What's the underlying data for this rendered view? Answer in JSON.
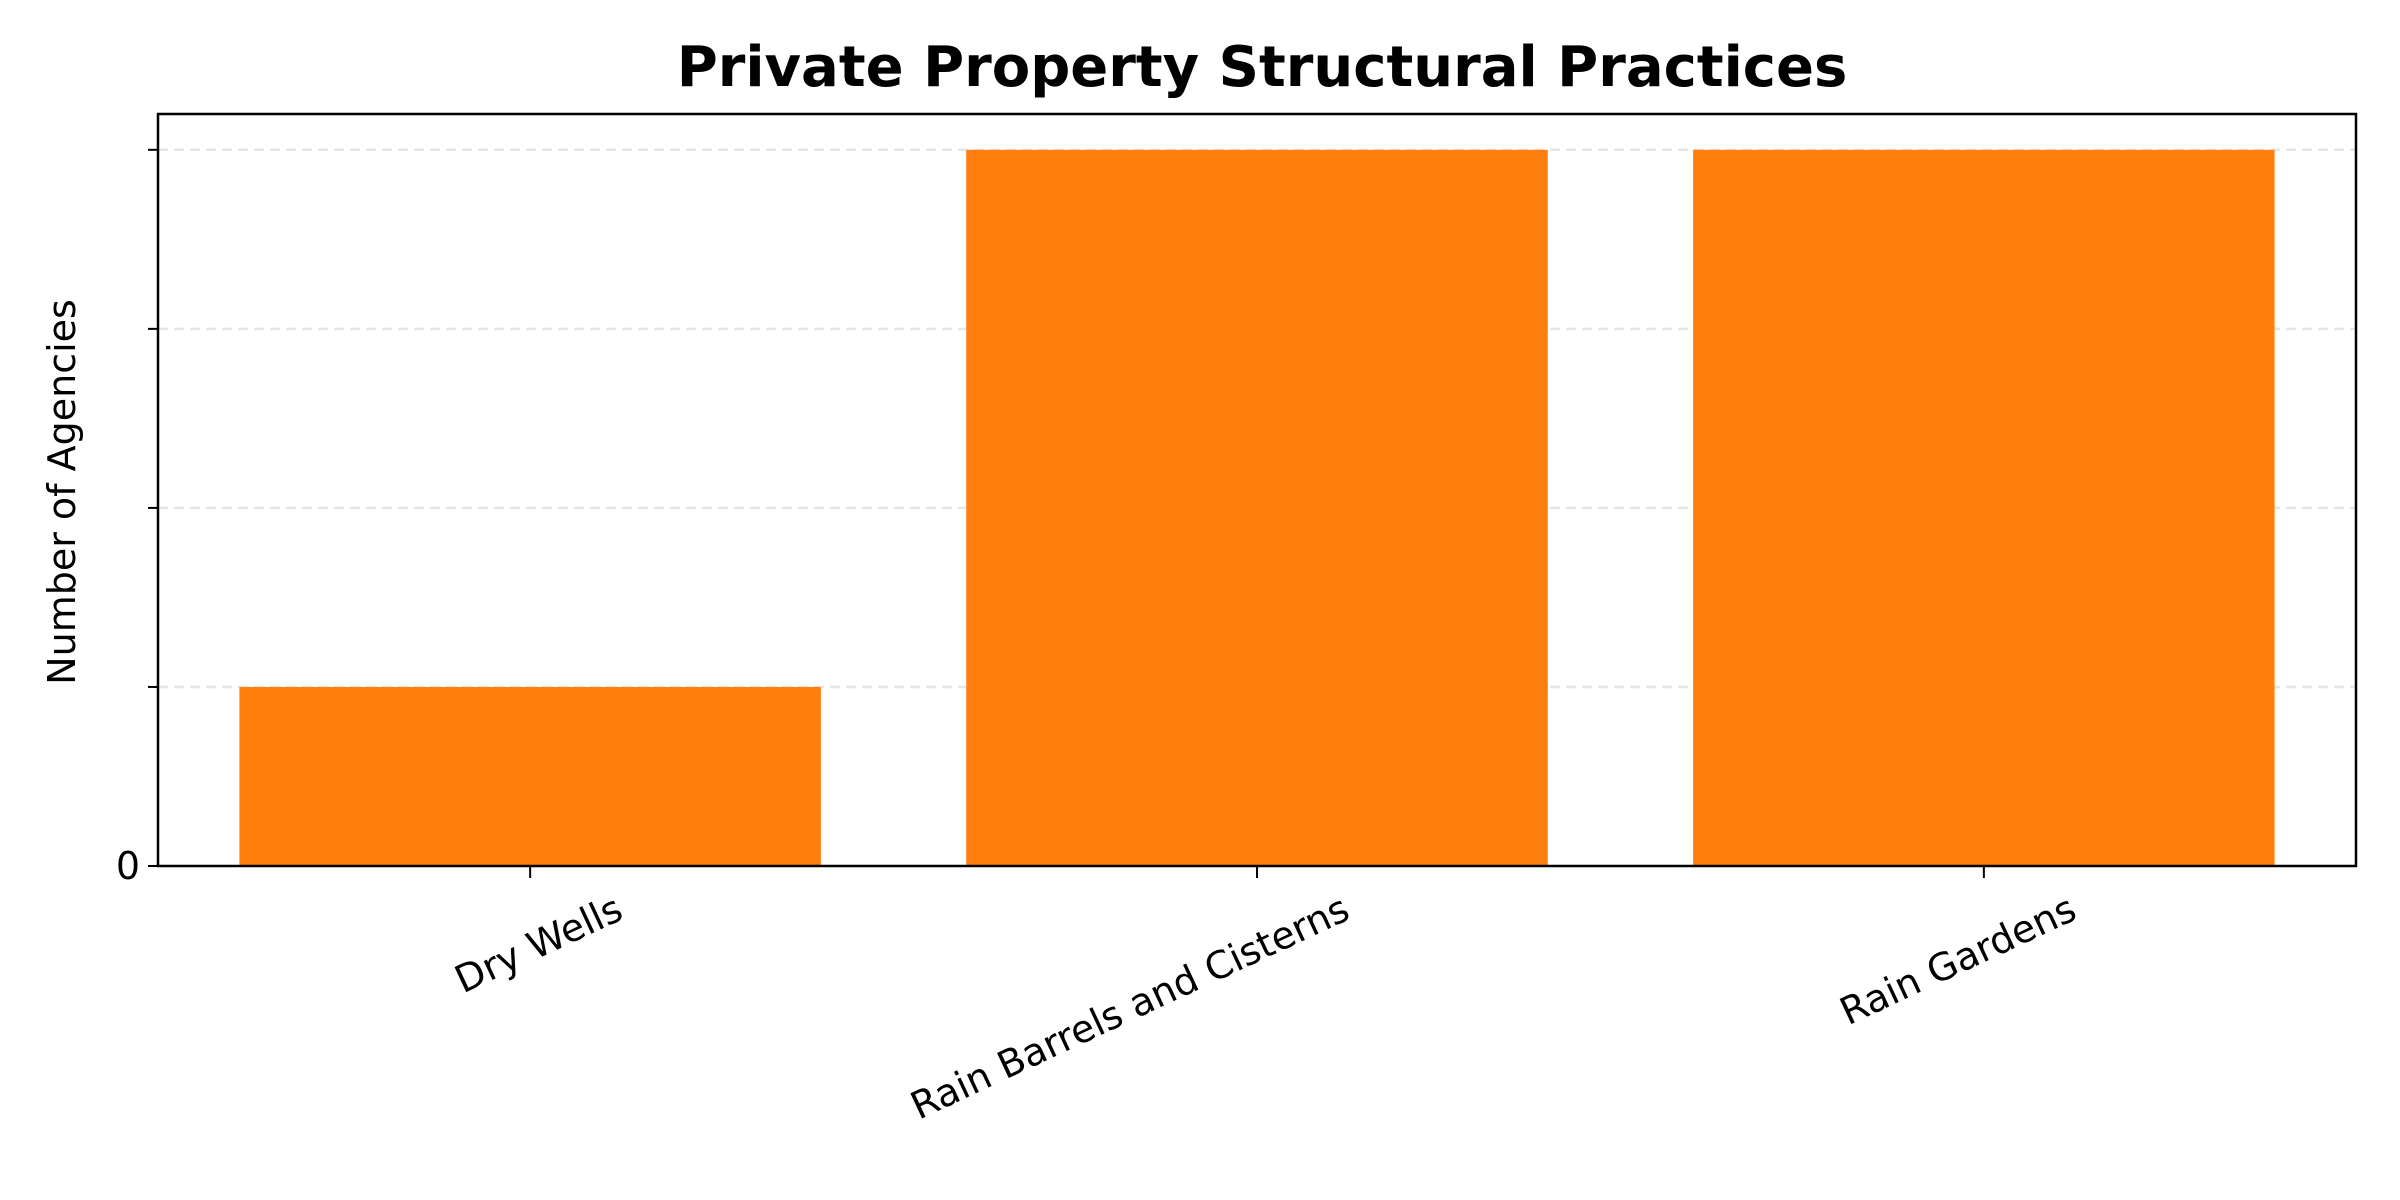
{
  "chart_data": {
    "type": "bar",
    "title": "Private Property Structural Practices",
    "xlabel": "",
    "ylabel": "Number of Agencies",
    "categories": [
      "Dry Wells",
      "Rain Barrels and Cisterns",
      "Rain Gardens"
    ],
    "values": [
      1,
      4,
      4
    ],
    "ylim": [
      0,
      4.2
    ],
    "y_ticks": [
      0,
      1,
      2,
      3,
      4
    ],
    "y_tick_labels": [
      "0",
      "",
      "",
      "",
      ""
    ],
    "grid": "horizontal dashed",
    "bar_color": "#ff7f0e",
    "grid_color": "#e6e6e6"
  }
}
